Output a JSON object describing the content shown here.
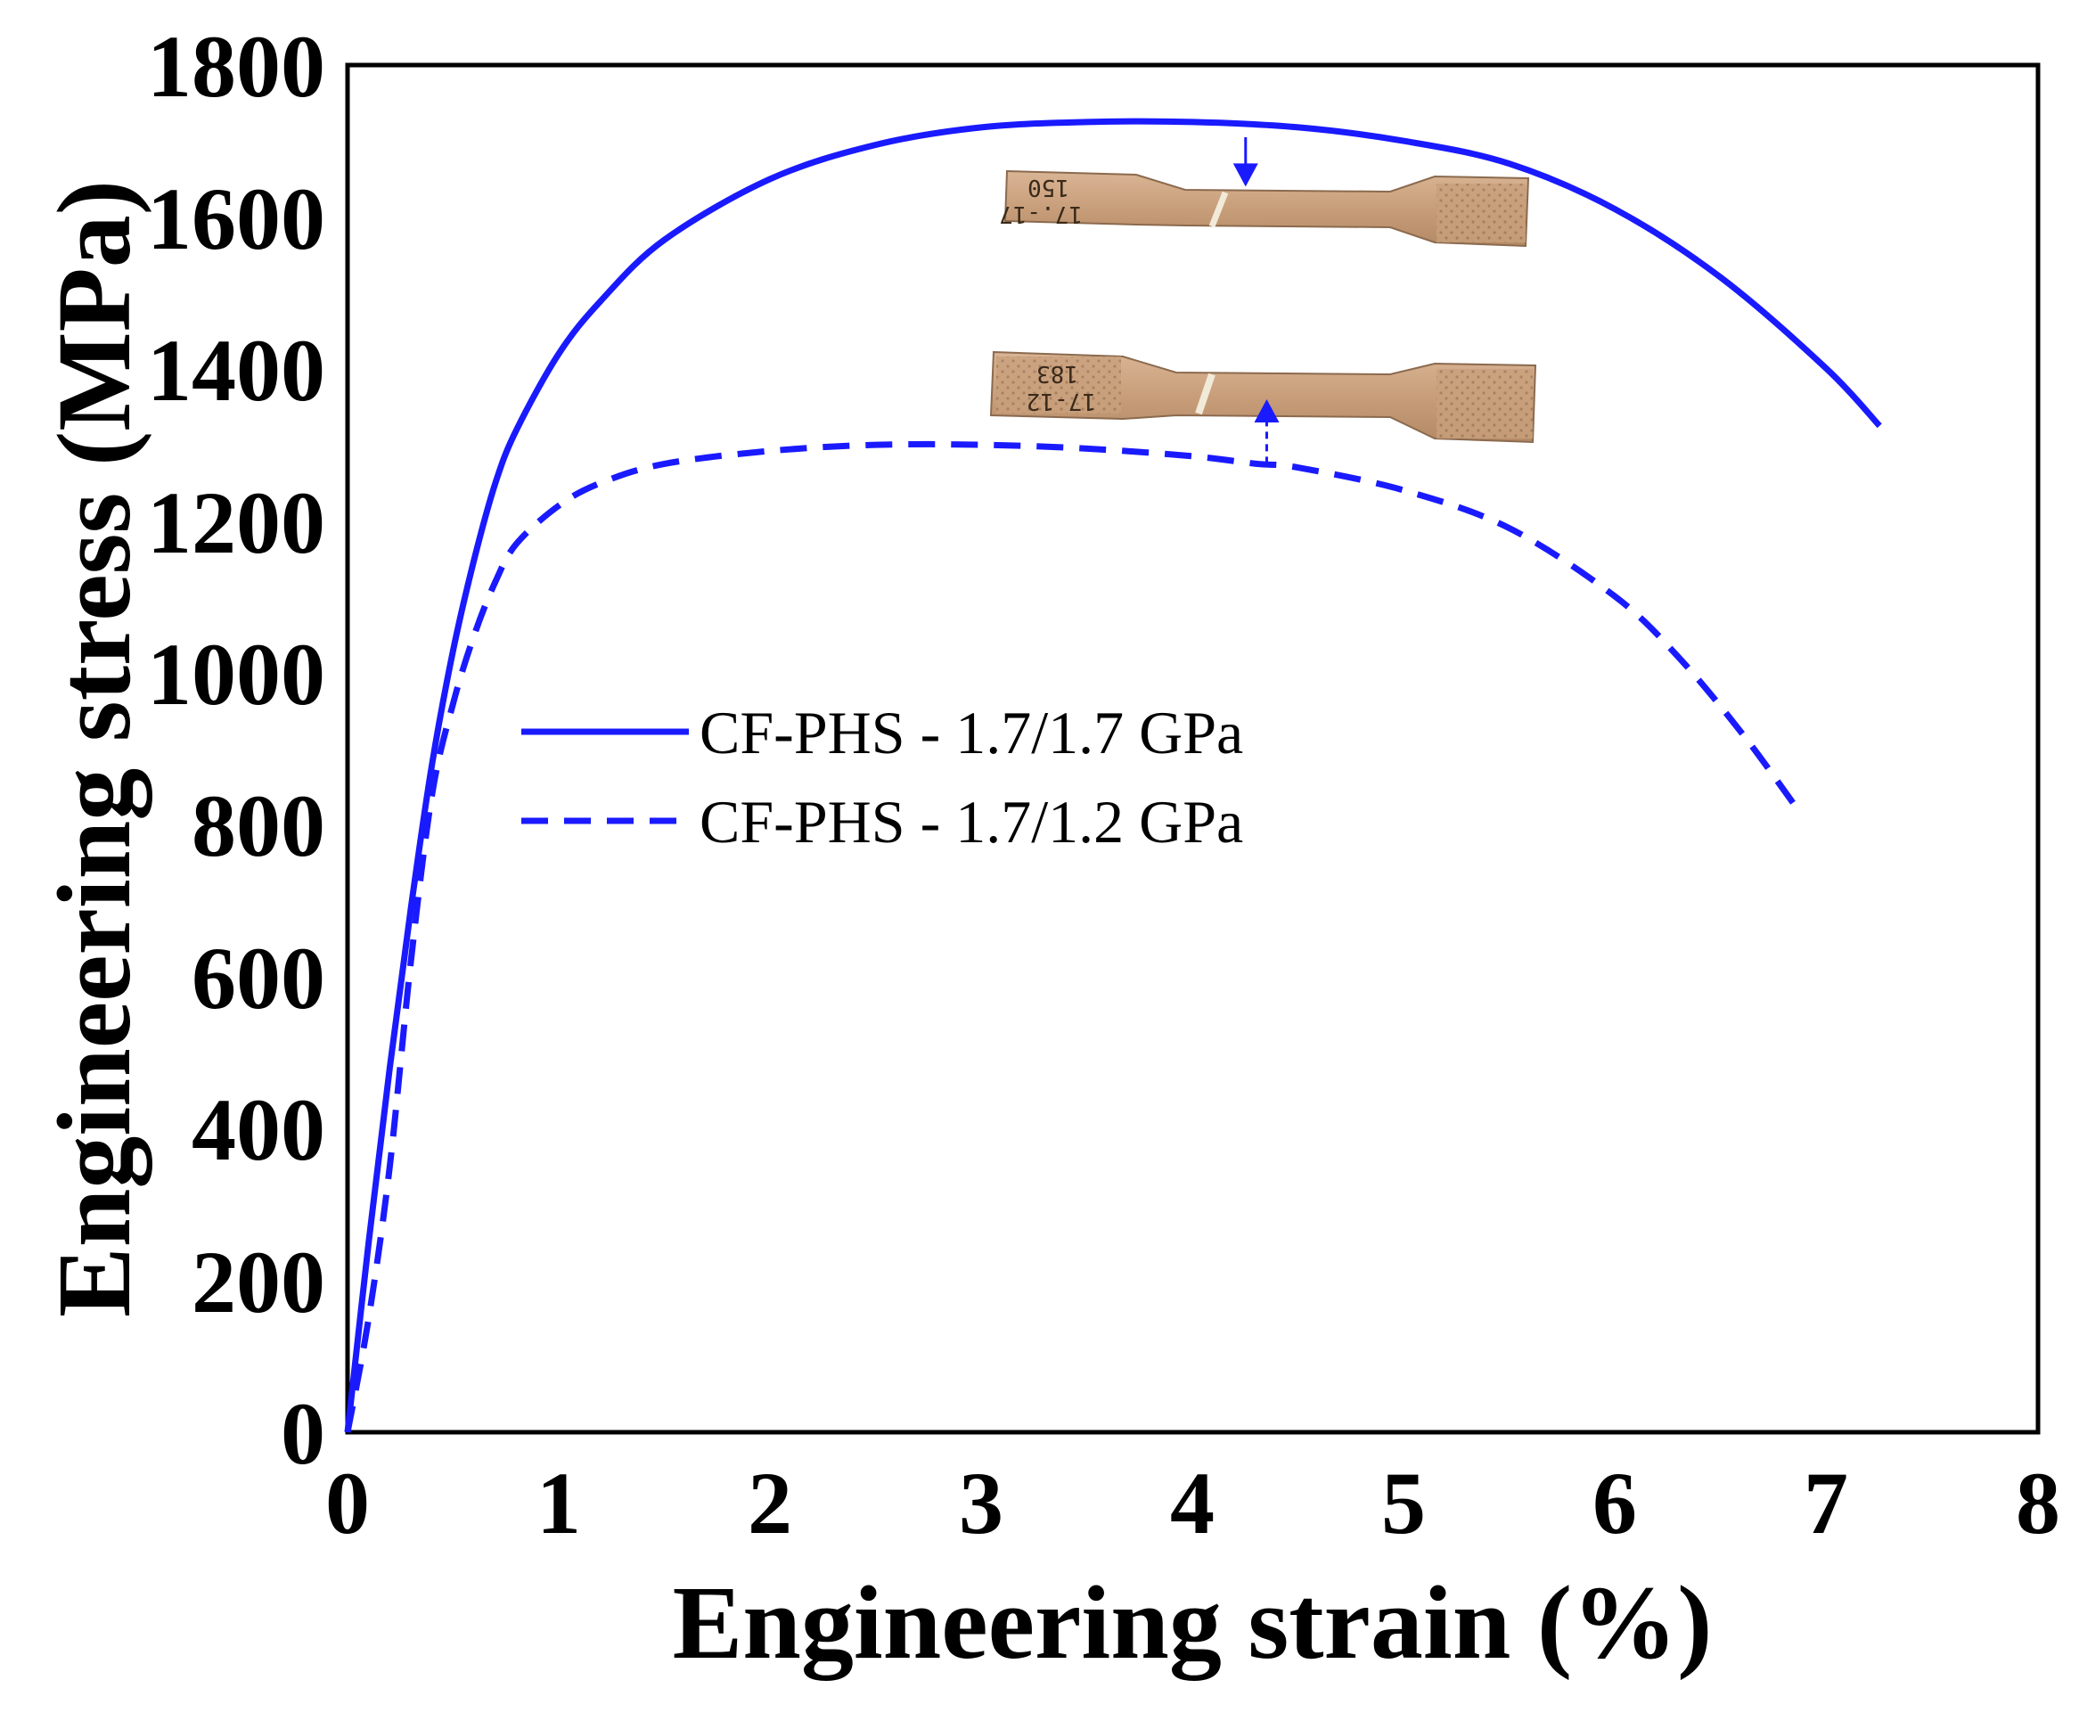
{
  "chart_data": {
    "type": "line",
    "xlabel": "Engineering strain (%)",
    "ylabel": "Engineering stress (MPa)",
    "xlim": [
      0,
      8
    ],
    "ylim": [
      0,
      1800
    ],
    "xticks": [
      "0",
      "1",
      "2",
      "3",
      "4",
      "5",
      "6",
      "7",
      "8"
    ],
    "yticks": [
      "0",
      "200",
      "400",
      "600",
      "800",
      "1000",
      "1200",
      "1400",
      "1600",
      "1800"
    ],
    "grid": false,
    "legend_position": "center-left",
    "series": [
      {
        "name": "CF-PHS - 1.7/1.7 GPa",
        "line_style": "solid",
        "color": "#1a1aff",
        "x": [
          0,
          0.1,
          0.2,
          0.3,
          0.4,
          0.5,
          0.6,
          0.7,
          0.8,
          1.0,
          1.2,
          1.5,
          2.0,
          2.5,
          3.0,
          3.5,
          4.0,
          4.5,
          5.0,
          5.5,
          6.0,
          6.5,
          7.0,
          7.25
        ],
        "y": [
          0,
          250,
          480,
          690,
          880,
          1030,
          1150,
          1250,
          1320,
          1420,
          1490,
          1570,
          1650,
          1695,
          1718,
          1725,
          1725,
          1718,
          1700,
          1670,
          1610,
          1520,
          1400,
          1325
        ]
      },
      {
        "name": "CF-PHS - 1.7/1.2 GPa",
        "line_style": "dashed",
        "color": "#1a1aff",
        "x": [
          0,
          0.1,
          0.2,
          0.3,
          0.4,
          0.5,
          0.6,
          0.7,
          0.8,
          1.0,
          1.2,
          1.5,
          2.0,
          2.5,
          3.0,
          3.5,
          4.0,
          4.3,
          4.5,
          5.0,
          5.5,
          6.0,
          6.3,
          6.6,
          6.85
        ],
        "y": [
          0,
          150,
          350,
          620,
          840,
          960,
          1050,
          1120,
          1170,
          1220,
          1250,
          1275,
          1292,
          1300,
          1300,
          1295,
          1285,
          1275,
          1270,
          1240,
          1190,
          1100,
          1020,
          920,
          825
        ]
      }
    ],
    "annotations": [
      {
        "type": "arrow",
        "direction": "down",
        "x": 4.25,
        "y_from": 1705,
        "y_to": 1640,
        "refers_to": "CF-PHS - 1.7/1.7 GPa"
      },
      {
        "type": "arrow",
        "direction": "up",
        "x": 4.35,
        "y_from": 1275,
        "y_to": 1360,
        "refers_to": "CF-PHS - 1.7/1.2 GPa"
      }
    ],
    "insets": [
      {
        "type": "photo",
        "name": "fractured tensile specimen (1.7/1.7)",
        "position": "upper",
        "markings": [
          "150",
          "17.-17"
        ]
      },
      {
        "type": "photo",
        "name": "fractured tensile specimen (1.7/1.2)",
        "position": "lower",
        "markings": [
          "183",
          "17-12"
        ]
      }
    ]
  }
}
